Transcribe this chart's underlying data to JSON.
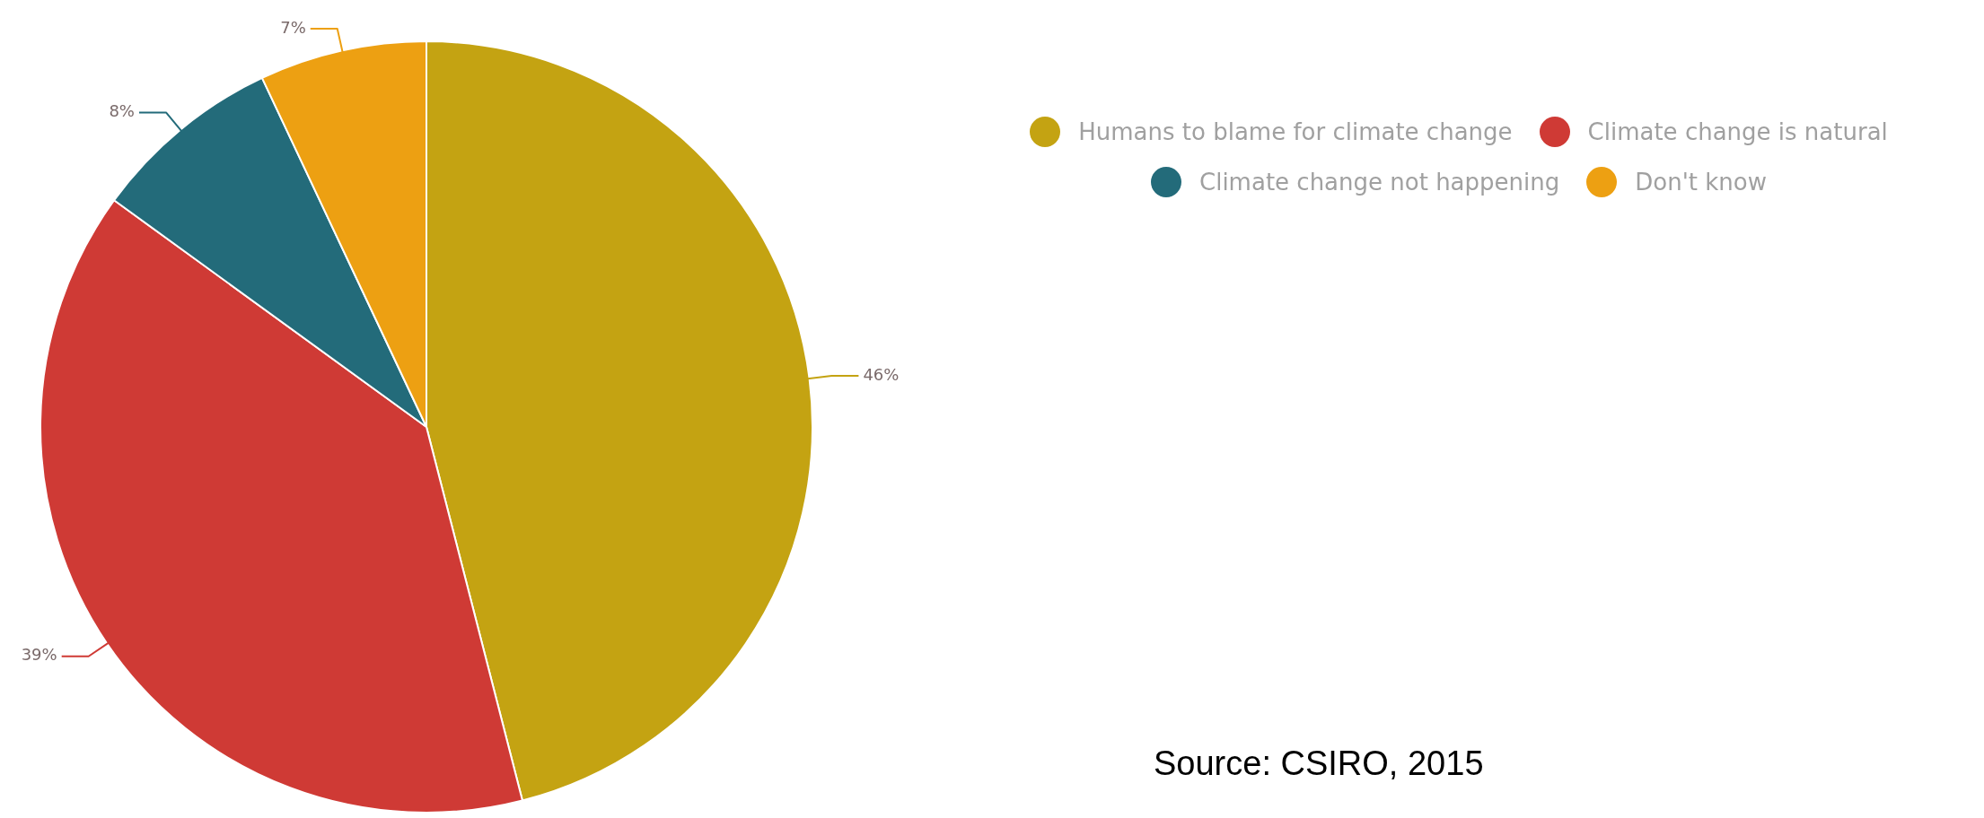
{
  "chart_data": {
    "type": "pie",
    "categories": [
      "Humans to blame for climate change",
      "Climate change is natural",
      "Climate change not happening",
      "Don't know"
    ],
    "values": [
      46,
      39,
      8,
      7
    ],
    "colors": [
      "#c4a312",
      "#cf3a35",
      "#236b7a",
      "#eda012"
    ],
    "value_labels": [
      "46%",
      "39%",
      "8%",
      "7%"
    ],
    "legend": "top right",
    "annotations": [
      "Source:  CSIRO, 2015"
    ]
  }
}
